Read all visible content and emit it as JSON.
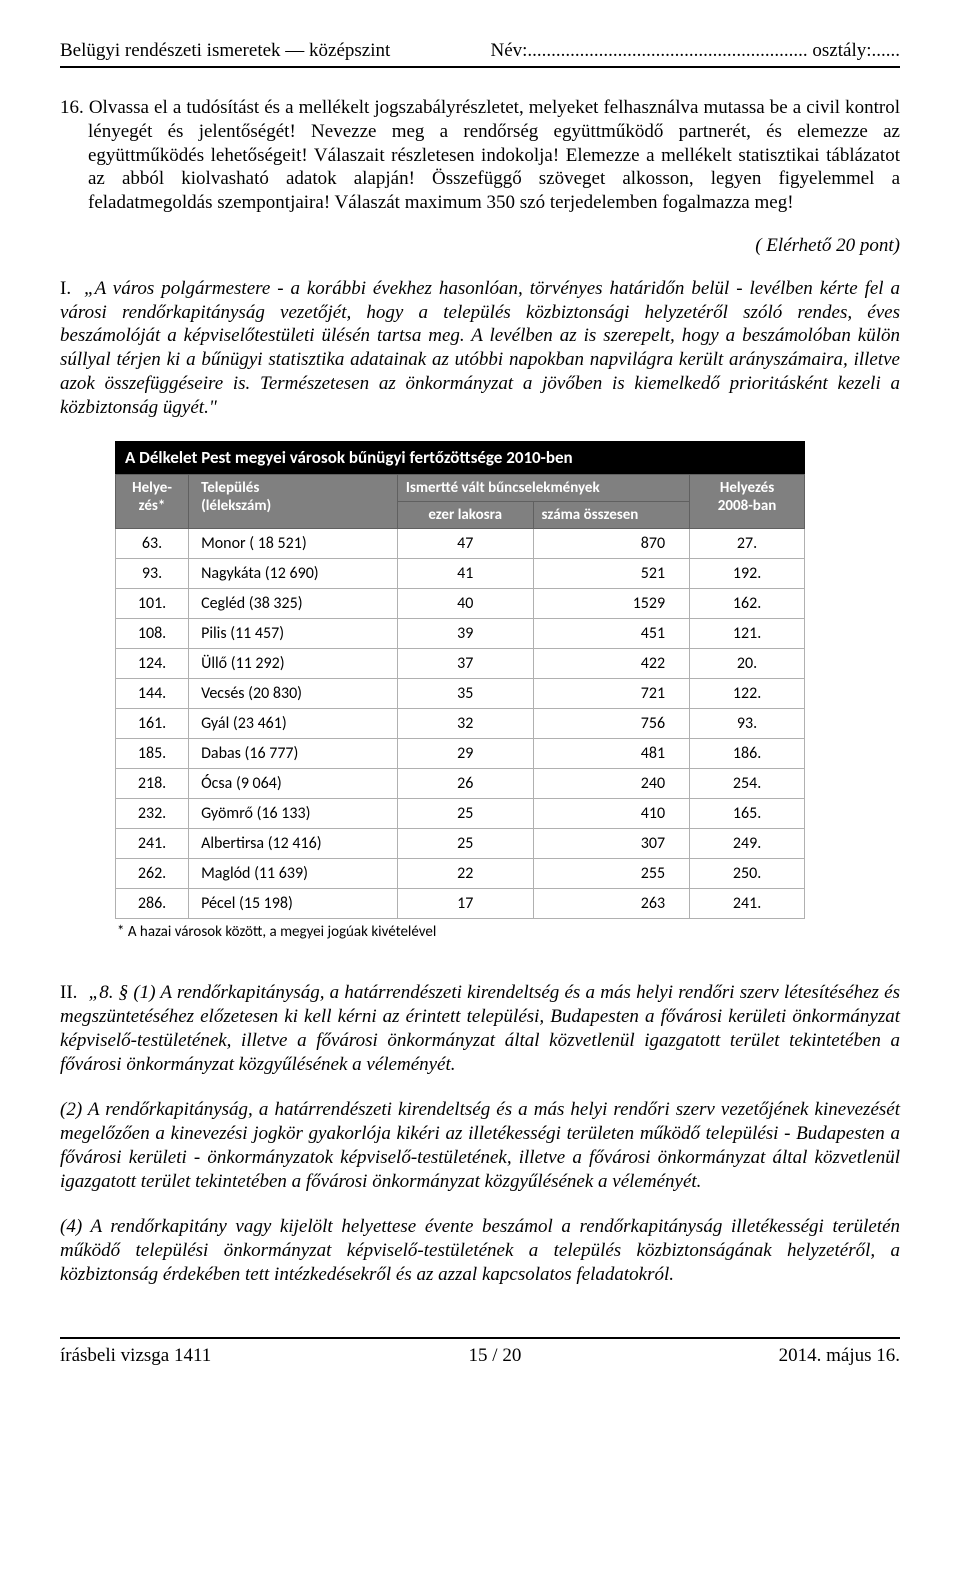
{
  "header": {
    "left": "Belügyi rendészeti ismeretek — középszint",
    "right": "Név:........................................................... osztály:......"
  },
  "task": {
    "number": "16.",
    "text": "Olvassa el a tudósítást és a mellékelt jogszabályrészletet, melyeket felhasználva mutassa be a civil kontrol lényegét és jelentőségét! Nevezze meg a rendőrség együttműködő partnerét, és elemezze az együttműködés lehetőségeit! Válaszait részletesen indokolja! Elemezze a mellékelt statisztikai táblázatot az abból kiolvasható adatok alapján! Összefüggő szöveget alkosson, legyen figyelemmel a feladatmegoldás szempontjaira! Válaszát maximum 350 szó terjedelemben fogalmazza meg!"
  },
  "points": "( Elérhető 20 pont)",
  "paraI": {
    "label": "I.",
    "text": "„A város polgármestere - a korábbi évekhez hasonlóan, törvényes határidőn belül - levélben kérte fel a városi rendőrkapitányság vezetőjét, hogy a település közbiztonsági helyzetéről szóló rendes, éves beszámolóját a képviselőtestületi ülésén tartsa meg. A levélben az is szerepelt, hogy a beszámolóban külön súllyal térjen ki a bűnügyi statisztika adatainak az utóbbi napokban napvilágra került arányszámaira, illetve azok összefüggéseire is. Természetesen az önkormányzat a jövőben is kiemelkedő prioritásként kezeli a közbiztonság ügyét.\""
  },
  "table": {
    "caption": "A Délkelet Pest megyei városok bűnügyi fertőzöttsége 2010-ben",
    "head": {
      "rank": "Helye-\nzés*",
      "town": "Település\n(lélekszám)",
      "crimes": "Ismertté vált bűncselekmények",
      "per": "ezer lakosra",
      "tot": "száma összesen",
      "rank2": "Helyezés\n2008-ban"
    },
    "rows": [
      [
        "63.",
        "Monor ( 18 521)",
        "47",
        "870",
        "27."
      ],
      [
        "93.",
        "Nagykáta (12 690)",
        "41",
        "521",
        "192."
      ],
      [
        "101.",
        "Cegléd (38 325)",
        "40",
        "1529",
        "162."
      ],
      [
        "108.",
        "Pilis (11 457)",
        "39",
        "451",
        "121."
      ],
      [
        "124.",
        "Üllő (11 292)",
        "37",
        "422",
        "20."
      ],
      [
        "144.",
        "Vecsés (20 830)",
        "35",
        "721",
        "122."
      ],
      [
        "161.",
        "Gyál (23 461)",
        "32",
        "756",
        "93."
      ],
      [
        "185.",
        "Dabas (16 777)",
        "29",
        "481",
        "186."
      ],
      [
        "218.",
        "Ócsa (9 064)",
        "26",
        "240",
        "254."
      ],
      [
        "232.",
        "Gyömrő (16 133)",
        "25",
        "410",
        "165."
      ],
      [
        "241.",
        "Albertirsa (12 416)",
        "25",
        "307",
        "249."
      ],
      [
        "262.",
        "Maglód (11 639)",
        "22",
        "255",
        "250."
      ],
      [
        "286.",
        "Pécel (15 198)",
        "17",
        "263",
        "241."
      ]
    ],
    "note": "* A hazai városok között, a megyei jogúak kivételével"
  },
  "paraII": {
    "label": "II.",
    "lead": "„8. § (1) A rendőrkapitányság, a határrendészeti kirendeltség és a más helyi rendőri szerv létesítéséhez és megszüntetéséhez előzetesen ki kell kérni az érintett települési, Budapesten a fővárosi kerületi önkormányzat képviselő-testületének, illetve a fővárosi önkormányzat által közvetlenül igazgatott terület tekintetében a fővárosi önkormányzat közgyűlésének a véleményét."
  },
  "para2": "(2) A rendőrkapitányság, a határrendészeti kirendeltség és a más helyi rendőri szerv vezetőjének kinevezését megelőzően a kinevezési jogkör gyakorlója kikéri az illetékességi területen működő települési - Budapesten a fővárosi kerületi - önkormányzatok képviselő-testületének, illetve a fővárosi önkormányzat által közvetlenül igazgatott terület tekintetében a fővárosi önkormányzat közgyűlésének a véleményét.",
  "para4": "(4) A rendőrkapitány vagy kijelölt helyettese évente beszámol a rendőrkapitányság illetékességi területén működő települési önkormányzat képviselő-testületének a település közbiztonságának helyzetéről, a közbiztonság érdekében tett intézkedésekről és az azzal kapcsolatos feladatokról.",
  "footer": {
    "left": "írásbeli vizsga 1411",
    "center": "15 / 20",
    "right": "2014. május 16."
  }
}
